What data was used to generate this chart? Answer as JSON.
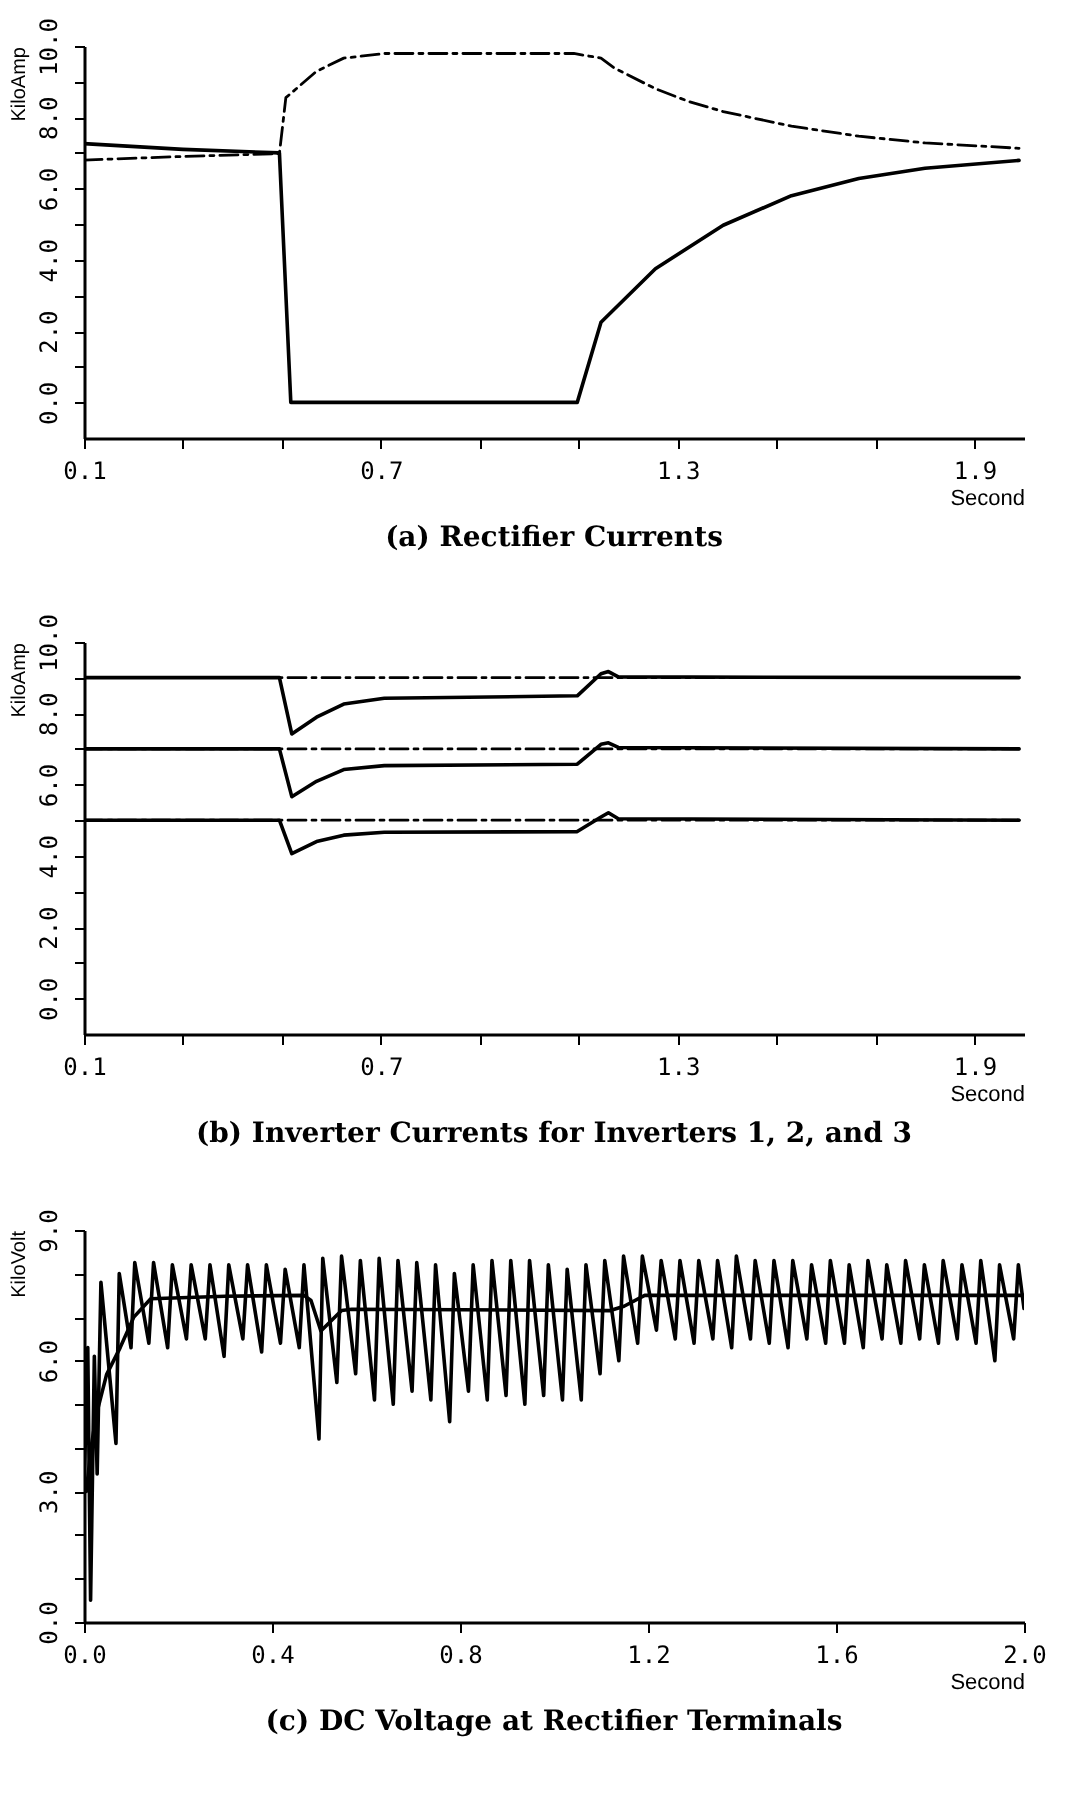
{
  "chart_data": [
    {
      "type": "line",
      "title": "(a) Rectifier Currents",
      "xlabel": "Second",
      "ylabel": "KiloAmp",
      "xlim": [
        0.1,
        2.0
      ],
      "ylim": [
        -1,
        10
      ],
      "xticks": [
        0.1,
        {
          "value": 0.3,
          "label": null
        },
        {
          "value": 0.5,
          "label": null
        },
        0.7,
        {
          "value": 0.9,
          "label": null
        },
        {
          "value": 1.1,
          "label": null
        },
        1.3,
        {
          "value": 1.5,
          "label": null
        },
        {
          "value": 1.7,
          "label": null
        },
        1.9
      ],
      "yticks": [
        {
          "value": 0,
          "label": "0.0"
        },
        {
          "value": 1,
          "label": null
        },
        {
          "value": 2,
          "label": "2.0"
        },
        {
          "value": 3,
          "label": null
        },
        {
          "value": 4,
          "label": "4.0"
        },
        {
          "value": 5,
          "label": null
        },
        {
          "value": 6,
          "label": "6.0"
        },
        {
          "value": 7,
          "label": null
        },
        {
          "value": 8,
          "label": "8.0"
        },
        {
          "value": 9,
          "label": null
        },
        {
          "value": 10,
          "label": "10.0"
        }
      ],
      "grid": false,
      "series": [
        {
          "color": "#000000",
          "line_style": "solid",
          "x": [
            0.1,
            0.3,
            0.495,
            0.518,
            1.097,
            1.145,
            1.255,
            1.392,
            1.53,
            1.666,
            1.8,
            1.99
          ],
          "values": [
            7.26,
            7.1,
            7.0,
            0,
            0,
            2.25,
            3.75,
            4.97,
            5.8,
            6.28,
            6.57,
            6.79
          ]
        },
        {
          "color": "#000000",
          "line_style": "dashdot",
          "x": [
            0.1,
            0.3,
            0.495,
            0.508,
            0.529,
            0.57,
            0.625,
            0.707,
            1.09,
            1.145,
            1.172,
            1.255,
            1.323,
            1.392,
            1.53,
            1.666,
            1.8,
            1.99
          ],
          "values": [
            6.8,
            6.9,
            6.98,
            8.55,
            8.8,
            9.29,
            9.66,
            9.79,
            9.79,
            9.66,
            9.38,
            8.8,
            8.44,
            8.16,
            7.75,
            7.47,
            7.28,
            7.13
          ]
        }
      ]
    },
    {
      "type": "line",
      "title": "(b) Inverter Currents for Inverters 1, 2, and 3",
      "xlabel": "Second",
      "ylabel": "KiloAmp",
      "xlim": [
        0.1,
        2.0
      ],
      "ylim": [
        -1,
        10
      ],
      "xticks": [
        0.1,
        {
          "value": 0.3,
          "label": null
        },
        {
          "value": 0.5,
          "label": null
        },
        0.7,
        {
          "value": 0.9,
          "label": null
        },
        {
          "value": 1.1,
          "label": null
        },
        1.3,
        {
          "value": 1.5,
          "label": null
        },
        {
          "value": 1.7,
          "label": null
        },
        1.9
      ],
      "yticks": [
        {
          "value": 0,
          "label": "0.0"
        },
        {
          "value": 1,
          "label": null
        },
        {
          "value": 2,
          "label": "2.0"
        },
        {
          "value": 3,
          "label": null
        },
        {
          "value": 4,
          "label": "4.0"
        },
        {
          "value": 5,
          "label": null
        },
        {
          "value": 6,
          "label": "6.0"
        },
        {
          "value": 7,
          "label": null
        },
        {
          "value": 8,
          "label": "8.0"
        },
        {
          "value": 9,
          "label": null
        },
        {
          "value": 10,
          "label": "10.0"
        }
      ],
      "grid": false,
      "series": [
        {
          "color": "#000000",
          "line_style": "dashdot",
          "x": [
            0.1,
            1.99
          ],
          "values": [
            9.0,
            9.0
          ]
        },
        {
          "color": "#000000",
          "line_style": "dashdot",
          "x": [
            0.1,
            1.99
          ],
          "values": [
            7.0,
            7.0
          ]
        },
        {
          "color": "#000000",
          "line_style": "dashdot",
          "x": [
            0.1,
            1.99
          ],
          "values": [
            5.0,
            5.0
          ]
        },
        {
          "color": "#000000",
          "line_style": "solid",
          "x": [
            0.1,
            0.495,
            0.52,
            0.57,
            0.625,
            0.707,
            1.097,
            1.145,
            1.16,
            1.18,
            1.99
          ],
          "values": [
            9.0,
            9.0,
            7.42,
            7.89,
            8.26,
            8.42,
            8.49,
            9.11,
            9.17,
            9.02,
            9.0
          ]
        },
        {
          "color": "#000000",
          "line_style": "solid",
          "x": [
            0.1,
            0.495,
            0.52,
            0.57,
            0.625,
            0.707,
            1.097,
            1.145,
            1.16,
            1.18,
            1.99
          ],
          "values": [
            7.0,
            7.0,
            5.66,
            6.09,
            6.42,
            6.53,
            6.57,
            7.13,
            7.17,
            7.04,
            7.0
          ]
        },
        {
          "color": "#000000",
          "line_style": "solid",
          "x": [
            0.1,
            0.495,
            0.52,
            0.57,
            0.625,
            0.707,
            1.097,
            1.145,
            1.16,
            1.18,
            1.99
          ],
          "values": [
            5.0,
            5.0,
            4.06,
            4.4,
            4.58,
            4.66,
            4.68,
            5.09,
            5.21,
            5.04,
            5.0
          ]
        }
      ]
    },
    {
      "type": "line",
      "title": "(c) DC Voltage at Rectifier Terminals",
      "xlabel": "Second",
      "ylabel": "KiloVolt",
      "xlim": [
        0,
        2.0
      ],
      "ylim": [
        0,
        9
      ],
      "xticks": [
        {
          "value": 0,
          "label": "0.0"
        },
        0.4,
        0.8,
        1.2,
        1.6,
        {
          "value": 2,
          "label": "2.0"
        }
      ],
      "yticks": [
        {
          "value": 0,
          "label": "0.0"
        },
        {
          "value": 1,
          "label": null
        },
        {
          "value": 2,
          "label": null
        },
        {
          "value": 3,
          "label": "3.0"
        },
        {
          "value": 4,
          "label": null
        },
        {
          "value": 5,
          "label": null
        },
        {
          "value": 6,
          "label": "6.0"
        },
        {
          "value": 7,
          "label": null
        },
        {
          "value": 8,
          "label": null
        },
        {
          "value": 9,
          "label": "9.0"
        }
      ],
      "grid": false,
      "series": [
        {
          "color": "#000000",
          "line_style": "solid",
          "x": [
            0.0,
            0.008,
            0.014,
            0.022,
            0.028,
            0.036,
            0.068,
            0.075,
            0.1,
            0.108,
            0.138,
            0.148,
            0.178,
            0.188,
            0.218,
            0.228,
            0.258,
            0.268,
            0.298,
            0.308,
            0.338,
            0.348,
            0.378,
            0.388,
            0.418,
            0.428,
            0.458,
            0.468,
            0.5,
            0.508,
            0.538,
            0.548,
            0.578,
            0.588,
            0.618,
            0.628,
            0.658,
            0.668,
            0.698,
            0.708,
            0.738,
            0.748,
            0.778,
            0.788,
            0.818,
            0.828,
            0.858,
            0.868,
            0.898,
            0.908,
            0.938,
            0.948,
            0.978,
            0.988,
            1.018,
            1.028,
            1.058,
            1.068,
            1.098,
            1.108,
            1.138,
            1.148,
            1.178,
            1.188,
            1.218,
            1.228,
            1.258,
            1.268,
            1.298,
            1.308,
            1.338,
            1.348,
            1.378,
            1.388,
            1.418,
            1.428,
            1.458,
            1.468,
            1.498,
            1.508,
            1.538,
            1.548,
            1.578,
            1.588,
            1.618,
            1.628,
            1.658,
            1.668,
            1.698,
            1.708,
            1.738,
            1.748,
            1.778,
            1.788,
            1.818,
            1.828,
            1.858,
            1.868,
            1.898,
            1.908,
            1.938,
            1.948,
            1.978,
            1.988,
            2.0
          ],
          "values": [
            3.0,
            6.3,
            0.5,
            6.1,
            3.4,
            7.8,
            4.1,
            8.0,
            6.3,
            8.25,
            6.4,
            8.25,
            6.3,
            8.2,
            6.5,
            8.2,
            6.5,
            8.2,
            6.1,
            8.2,
            6.5,
            8.2,
            6.2,
            8.2,
            6.4,
            8.1,
            6.3,
            8.2,
            4.2,
            8.35,
            5.5,
            8.4,
            5.7,
            8.3,
            5.1,
            8.35,
            5.0,
            8.3,
            5.3,
            8.25,
            5.1,
            8.2,
            4.6,
            8.0,
            5.3,
            8.2,
            5.1,
            8.3,
            5.2,
            8.3,
            5.0,
            8.3,
            5.2,
            8.2,
            5.1,
            8.1,
            5.1,
            8.2,
            5.7,
            8.3,
            6.0,
            8.4,
            6.4,
            8.4,
            6.7,
            8.3,
            6.5,
            8.3,
            6.4,
            8.3,
            6.5,
            8.3,
            6.3,
            8.4,
            6.5,
            8.3,
            6.4,
            8.3,
            6.3,
            8.3,
            6.5,
            8.2,
            6.4,
            8.3,
            6.4,
            8.2,
            6.3,
            8.3,
            6.5,
            8.2,
            6.4,
            8.3,
            6.5,
            8.2,
            6.4,
            8.3,
            6.5,
            8.2,
            6.4,
            8.3,
            6.0,
            8.2,
            6.5,
            8.2,
            7.2
          ]
        },
        {
          "color": "#000000",
          "line_style": "solid",
          "x": [
            0.005,
            0.015,
            0.026,
            0.048,
            0.077,
            0.106,
            0.142,
            0.3,
            0.468,
            0.483,
            0.504,
            0.548,
            0.57,
            0.8,
            1.12,
            1.149,
            1.193,
            1.6,
            2.0
          ],
          "values": [
            3.0,
            4.0,
            4.75,
            5.68,
            6.3,
            7.0,
            7.42,
            7.48,
            7.5,
            7.38,
            6.68,
            7.15,
            7.18,
            7.17,
            7.15,
            7.25,
            7.5,
            7.5,
            7.5
          ]
        }
      ]
    }
  ]
}
